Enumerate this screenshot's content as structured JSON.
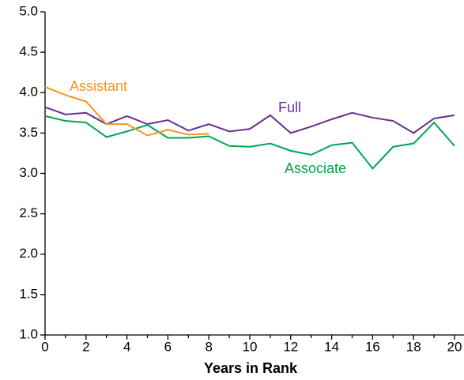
{
  "chart_data": {
    "type": "line",
    "xlabel": "Years in Rank",
    "x": [
      0,
      1,
      2,
      3,
      4,
      5,
      6,
      7,
      8,
      9,
      10,
      11,
      12,
      13,
      14,
      15,
      16,
      17,
      18,
      19,
      20
    ],
    "series": [
      {
        "name": "Full",
        "color": "#6a2c91",
        "values": [
          3.82,
          3.73,
          3.75,
          3.61,
          3.71,
          3.61,
          3.66,
          3.53,
          3.61,
          3.52,
          3.55,
          3.72,
          3.5,
          3.58,
          3.67,
          3.75,
          3.69,
          3.65,
          3.5,
          3.68,
          3.72
        ]
      },
      {
        "name": "Associate",
        "color": "#00a651",
        "values": [
          3.71,
          3.65,
          3.63,
          3.45,
          3.52,
          3.6,
          3.44,
          3.44,
          3.46,
          3.34,
          3.33,
          3.37,
          3.28,
          3.23,
          3.35,
          3.38,
          3.06,
          3.33,
          3.37,
          3.63,
          3.34
        ]
      },
      {
        "name": "Assistant",
        "color": "#f7941d",
        "values": [
          4.07,
          3.97,
          3.89,
          3.61,
          3.61,
          3.47,
          3.54,
          3.48,
          3.49,
          null,
          null,
          null,
          null,
          null,
          null,
          null,
          null,
          null,
          null,
          null,
          null
        ]
      }
    ],
    "xlim": [
      0,
      20
    ],
    "xticks": [
      0,
      2,
      4,
      6,
      8,
      10,
      12,
      14,
      16,
      18,
      20
    ],
    "xminorticks": [
      1,
      3,
      5,
      7,
      9,
      11,
      13,
      15,
      17,
      19
    ],
    "ylim": [
      1,
      5
    ],
    "yticks": [
      {
        "value": 1,
        "label": "1.0"
      },
      1.5,
      {
        "value": 2,
        "label": "2.0"
      },
      2.5,
      {
        "value": 3,
        "label": "3.0"
      },
      3.5,
      {
        "value": 4,
        "label": "4.0"
      },
      4.5,
      {
        "value": 5,
        "label": "5.0"
      }
    ],
    "grid": false
  }
}
